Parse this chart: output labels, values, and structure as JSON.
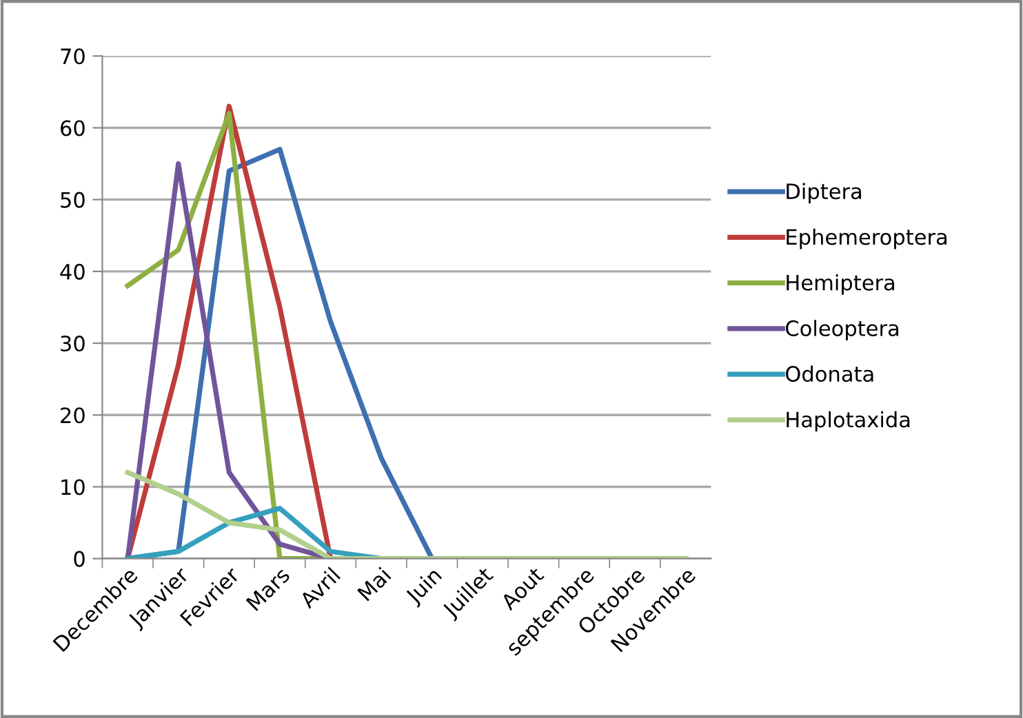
{
  "chart_data": {
    "type": "line",
    "categories": [
      "Decembre",
      "Janvier",
      "Fevrier",
      "Mars",
      "Avril",
      "Mai",
      "Juin",
      "Juillet",
      "Aout",
      "septembre",
      "Octobre",
      "Novembre"
    ],
    "series": [
      {
        "name": "Diptera",
        "color": "#3e6fb0",
        "values": [
          0,
          1,
          54,
          57,
          33,
          14,
          0,
          0,
          null,
          null,
          null,
          null
        ]
      },
      {
        "name": "Ephemeroptera",
        "color": "#be3c3a",
        "values": [
          0,
          27,
          63,
          35,
          0,
          null,
          null,
          null,
          null,
          null,
          null,
          null
        ]
      },
      {
        "name": "Hemiptera",
        "color": "#8eb043",
        "values": [
          38,
          43,
          62,
          0,
          0,
          0,
          0,
          0,
          0,
          0,
          0,
          0
        ]
      },
      {
        "name": "Coleoptera",
        "color": "#71559a",
        "values": [
          0,
          55,
          12,
          2,
          0,
          0,
          0,
          0,
          0,
          0,
          0,
          0
        ]
      },
      {
        "name": "Odonata",
        "color": "#35a0bd",
        "values": [
          0,
          1,
          5,
          7,
          1,
          0,
          0,
          0,
          null,
          null,
          null,
          null
        ]
      },
      {
        "name": "Haplotaxida",
        "color": "#b3cf8c",
        "values": [
          12,
          9,
          5,
          4,
          0,
          0,
          0,
          0,
          0,
          0,
          0,
          0
        ]
      }
    ],
    "ylim": [
      0,
      70
    ],
    "yticks": [
      0,
      10,
      20,
      30,
      40,
      50,
      60,
      70
    ],
    "grid": "y",
    "legend": "right",
    "marker": "none",
    "line_style": "solid"
  }
}
